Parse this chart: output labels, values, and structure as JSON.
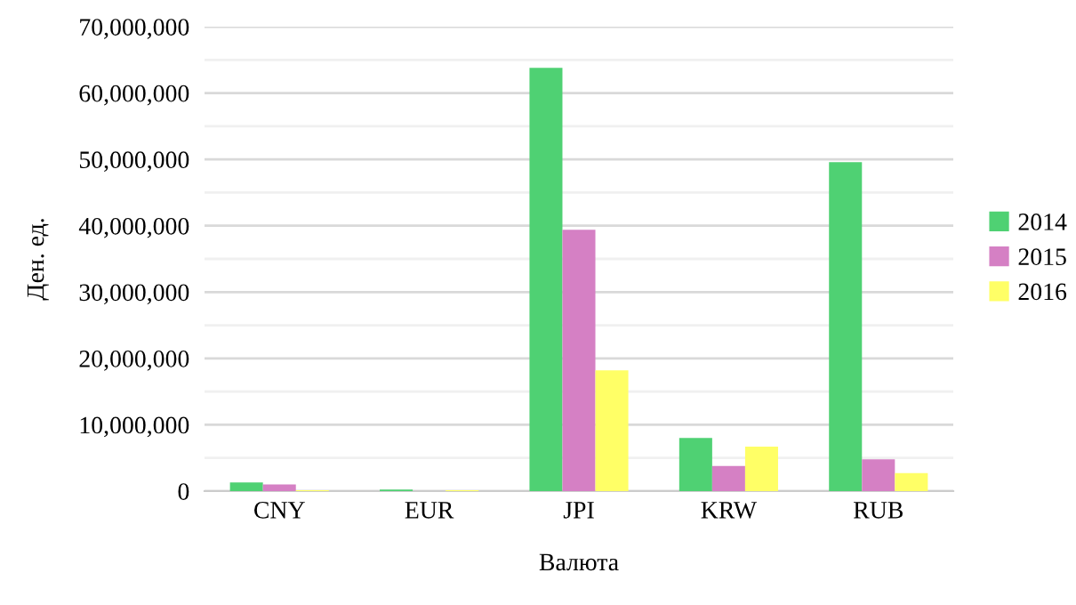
{
  "chart_data": {
    "type": "bar",
    "xlabel": "Валюта",
    "ylabel": "Ден. ед.",
    "categories": [
      "CNY",
      "EUR",
      "JPI",
      "KRW",
      "RUB"
    ],
    "series": [
      {
        "name": "2014",
        "color": "#4fd173",
        "values": [
          1300000,
          250000,
          63800000,
          8000000,
          49600000
        ]
      },
      {
        "name": "2015",
        "color": "#d580c4",
        "values": [
          1000000,
          0,
          39400000,
          3800000,
          4800000
        ]
      },
      {
        "name": "2016",
        "color": "#ffff66",
        "values": [
          150000,
          150000,
          18200000,
          6700000,
          2700000
        ]
      }
    ],
    "ylim": [
      0,
      70000000
    ],
    "yticks": [
      {
        "value": 0,
        "label": "0"
      },
      {
        "value": 10000000,
        "label": "10,000,000"
      },
      {
        "value": 20000000,
        "label": "20,000,000"
      },
      {
        "value": 30000000,
        "label": "30,000,000"
      },
      {
        "value": 40000000,
        "label": "40,000,000"
      },
      {
        "value": 50000000,
        "label": "50,000,000"
      },
      {
        "value": 60000000,
        "label": "60,000,000"
      },
      {
        "value": 70000000,
        "label": "70,000,000"
      }
    ],
    "grid": "y",
    "legend": "right"
  }
}
